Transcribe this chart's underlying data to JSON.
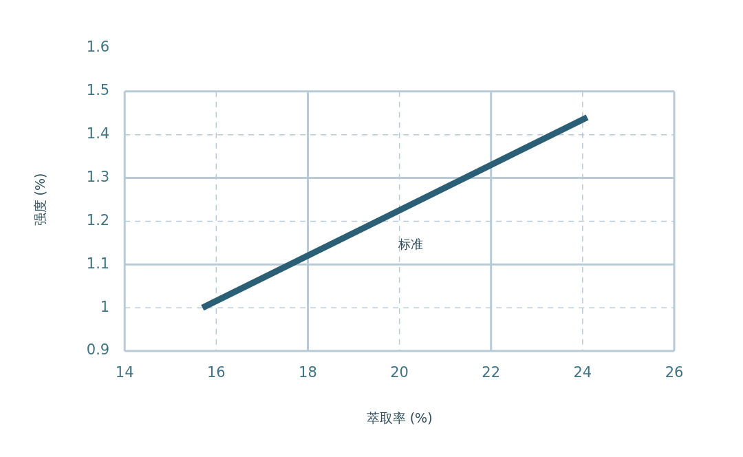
{
  "chart_data": {
    "type": "line",
    "xlabel": "萃取率 (%)",
    "ylabel": "强度 (%)",
    "x": [
      15.7,
      24.1
    ],
    "series": [
      {
        "color": "#2b5f76",
        "values": [
          1.0,
          1.44
        ]
      }
    ],
    "annotations": [
      "标准"
    ],
    "xlim": [
      14,
      26
    ],
    "xticks": [
      14,
      16,
      18,
      20,
      22,
      24,
      26
    ],
    "ylim": [
      0.9,
      1.6
    ],
    "yticks": [
      0.9,
      1,
      1.1,
      1.2,
      1.3,
      1.4,
      1.5,
      1.6
    ],
    "grid": true,
    "legend": false,
    "marker": "none",
    "line_style": "solid"
  }
}
